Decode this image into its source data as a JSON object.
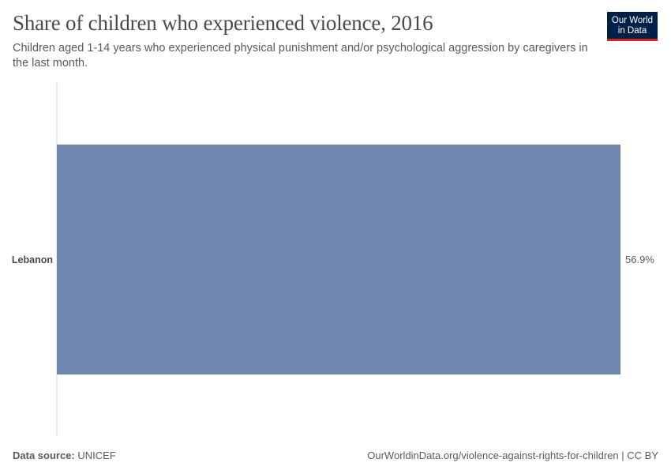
{
  "header": {
    "title": "Share of children who experienced violence, 2016",
    "subtitle": "Children aged 1-14 years who experienced physical punishment and/or psychological aggression by caregivers in the last month."
  },
  "logo": {
    "line1": "Our World",
    "line2": "in Data",
    "bg_color": "#002147",
    "accent_color": "#ce261e"
  },
  "footer": {
    "source_label": "Data source:",
    "source_value": "UNICEF",
    "url_license": "OurWorldinData.org/violence-against-rights-for-children | CC BY"
  },
  "chart_data": {
    "type": "bar",
    "orientation": "horizontal",
    "title": "Share of children who experienced violence, 2016",
    "categories": [
      "Lebanon"
    ],
    "values": [
      56.9
    ],
    "value_labels": [
      "56.9%"
    ],
    "unit": "%",
    "xlim": [
      0,
      56.9
    ],
    "grid": false,
    "bar_color": "#6f87ae",
    "axis_color": "#d5d5d5"
  }
}
